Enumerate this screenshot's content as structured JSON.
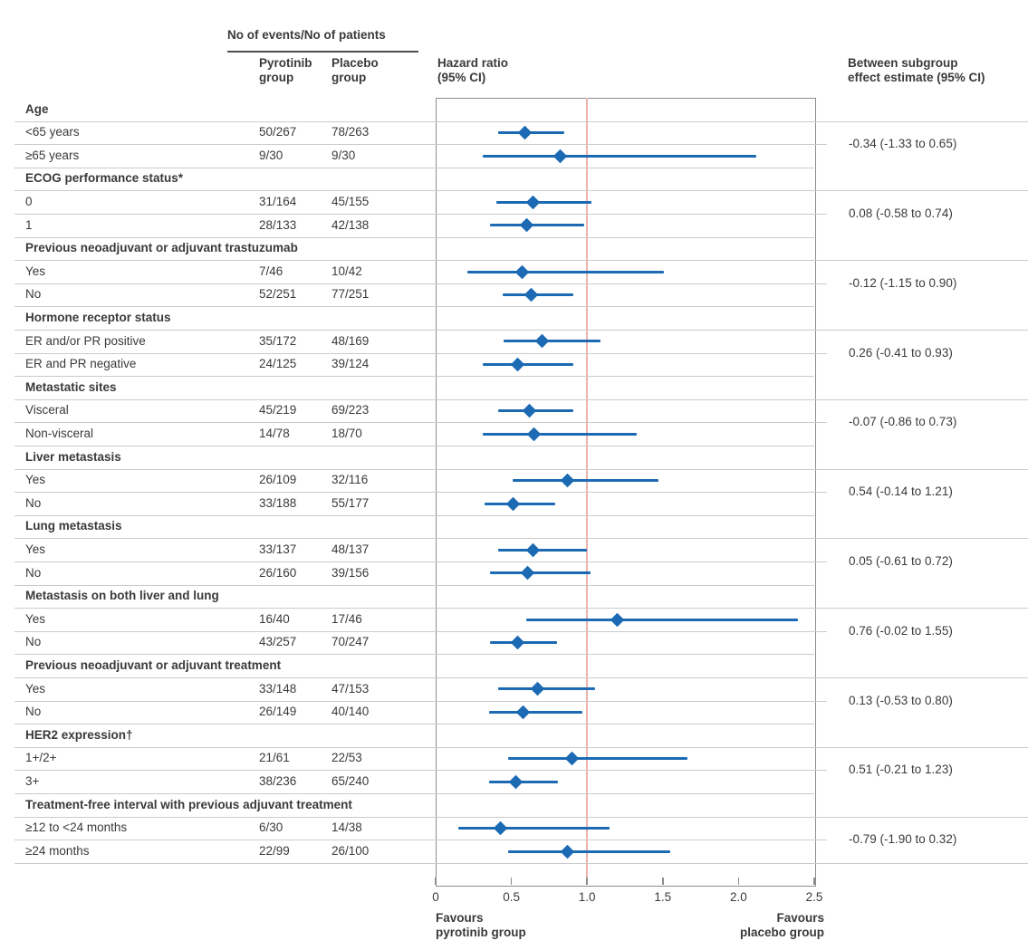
{
  "header": {
    "events": "No of events/No of patients",
    "pyrotinib": "Pyrotinib\ngroup",
    "placebo": "Placebo\ngroup",
    "hazard_ratio": "Hazard ratio\n(95% CI)",
    "between_subgroup": "Between subgroup\neffect estimate (95% CI)"
  },
  "chart_data": {
    "type": "forest",
    "x_axis": {
      "range": [
        0,
        2.5
      ],
      "tick_values": [
        0,
        0.5,
        1.0,
        1.5,
        2.0,
        2.5
      ],
      "tick_labels": [
        "0",
        "0.5",
        "1.0",
        "1.5",
        "2.0",
        "2.5"
      ],
      "reference_line": 1.0,
      "label_left": "Favours\npyrotinib group",
      "label_right": "Favours\nplacebo group",
      "grid": false
    },
    "sections": [
      {
        "name": "Age",
        "effect": "-0.34 (-1.33 to 0.65)",
        "rows": [
          {
            "label": "<65 years",
            "pyrotinib": "50/267",
            "placebo": "78/263",
            "hr": 0.59,
            "ci": [
              0.41,
              0.85
            ]
          },
          {
            "label": "≥65 years",
            "pyrotinib": "9/30",
            "placebo": "9/30",
            "hr": 0.82,
            "ci": [
              0.31,
              2.12
            ]
          }
        ]
      },
      {
        "name": "ECOG performance status*",
        "effect": "0.08 (-0.58 to 0.74)",
        "rows": [
          {
            "label": "0",
            "pyrotinib": "31/164",
            "placebo": "45/155",
            "hr": 0.64,
            "ci": [
              0.4,
              1.03
            ]
          },
          {
            "label": "1",
            "pyrotinib": "28/133",
            "placebo": "42/138",
            "hr": 0.6,
            "ci": [
              0.36,
              0.98
            ]
          }
        ]
      },
      {
        "name": "Previous neoadjuvant or adjuvant trastuzumab",
        "effect": "-0.12 (-1.15 to 0.90)",
        "rows": [
          {
            "label": "Yes",
            "pyrotinib": "7/46",
            "placebo": "10/42",
            "hr": 0.57,
            "ci": [
              0.21,
              1.51
            ]
          },
          {
            "label": "No",
            "pyrotinib": "52/251",
            "placebo": "77/251",
            "hr": 0.63,
            "ci": [
              0.44,
              0.91
            ]
          }
        ]
      },
      {
        "name": "Hormone receptor status",
        "effect": "0.26 (-0.41 to 0.93)",
        "rows": [
          {
            "label": "ER and/or PR positive",
            "pyrotinib": "35/172",
            "placebo": "48/169",
            "hr": 0.7,
            "ci": [
              0.45,
              1.09
            ]
          },
          {
            "label": "ER and PR negative",
            "pyrotinib": "24/125",
            "placebo": "39/124",
            "hr": 0.54,
            "ci": [
              0.31,
              0.91
            ]
          }
        ]
      },
      {
        "name": "Metastatic sites",
        "effect": "-0.07 (-0.86 to 0.73)",
        "rows": [
          {
            "label": "Visceral",
            "pyrotinib": "45/219",
            "placebo": "69/223",
            "hr": 0.62,
            "ci": [
              0.41,
              0.91
            ]
          },
          {
            "label": "Non-visceral",
            "pyrotinib": "14/78",
            "placebo": "18/70",
            "hr": 0.65,
            "ci": [
              0.31,
              1.33
            ]
          }
        ]
      },
      {
        "name": "Liver metastasis",
        "effect": "0.54 (-0.14 to 1.21)",
        "rows": [
          {
            "label": "Yes",
            "pyrotinib": "26/109",
            "placebo": "32/116",
            "hr": 0.87,
            "ci": [
              0.51,
              1.47
            ]
          },
          {
            "label": "No",
            "pyrotinib": "33/188",
            "placebo": "55/177",
            "hr": 0.51,
            "ci": [
              0.32,
              0.79
            ]
          }
        ]
      },
      {
        "name": "Lung metastasis",
        "effect": "0.05 (-0.61 to 0.72)",
        "rows": [
          {
            "label": "Yes",
            "pyrotinib": "33/137",
            "placebo": "48/137",
            "hr": 0.64,
            "ci": [
              0.41,
              1.0
            ]
          },
          {
            "label": "No",
            "pyrotinib": "26/160",
            "placebo": "39/156",
            "hr": 0.61,
            "ci": [
              0.36,
              1.02
            ]
          }
        ]
      },
      {
        "name": "Metastasis on both liver and lung",
        "effect": "0.76 (-0.02 to 1.55)",
        "rows": [
          {
            "label": "Yes",
            "pyrotinib": "16/40",
            "placebo": "17/46",
            "hr": 1.2,
            "ci": [
              0.6,
              2.39
            ]
          },
          {
            "label": "No",
            "pyrotinib": "43/257",
            "placebo": "70/247",
            "hr": 0.54,
            "ci": [
              0.36,
              0.8
            ]
          }
        ]
      },
      {
        "name": "Previous neoadjuvant or adjuvant treatment",
        "effect": "0.13 (-0.53 to 0.80)",
        "rows": [
          {
            "label": "Yes",
            "pyrotinib": "33/148",
            "placebo": "47/153",
            "hr": 0.67,
            "ci": [
              0.41,
              1.05
            ]
          },
          {
            "label": "No",
            "pyrotinib": "26/149",
            "placebo": "40/140",
            "hr": 0.58,
            "ci": [
              0.35,
              0.97
            ]
          }
        ]
      },
      {
        "name": "HER2 expression†",
        "effect": "0.51 (-0.21 to 1.23)",
        "rows": [
          {
            "label": "1+/2+",
            "pyrotinib": "21/61",
            "placebo": "22/53",
            "hr": 0.9,
            "ci": [
              0.48,
              1.66
            ]
          },
          {
            "label": "3+",
            "pyrotinib": "38/236",
            "placebo": "65/240",
            "hr": 0.53,
            "ci": [
              0.35,
              0.81
            ]
          }
        ]
      },
      {
        "name": "Treatment-free interval with previous adjuvant treatment",
        "effect": "-0.79 (-1.90 to 0.32)",
        "rows": [
          {
            "label": "≥12 to <24 months",
            "pyrotinib": "6/30",
            "placebo": "14/38",
            "hr": 0.43,
            "ci": [
              0.15,
              1.15
            ]
          },
          {
            "label": "≥24 months",
            "pyrotinib": "22/99",
            "placebo": "26/100",
            "hr": 0.87,
            "ci": [
              0.48,
              1.55
            ]
          }
        ]
      }
    ]
  },
  "colors": {
    "accent_blue": "#1b6ab3",
    "reference_pink": "#f0b2ae",
    "grid": "#cbcbcb",
    "box_border": "#8c8c8c",
    "header_rule": "#4f4f4f",
    "text": "#3a3a3a"
  }
}
